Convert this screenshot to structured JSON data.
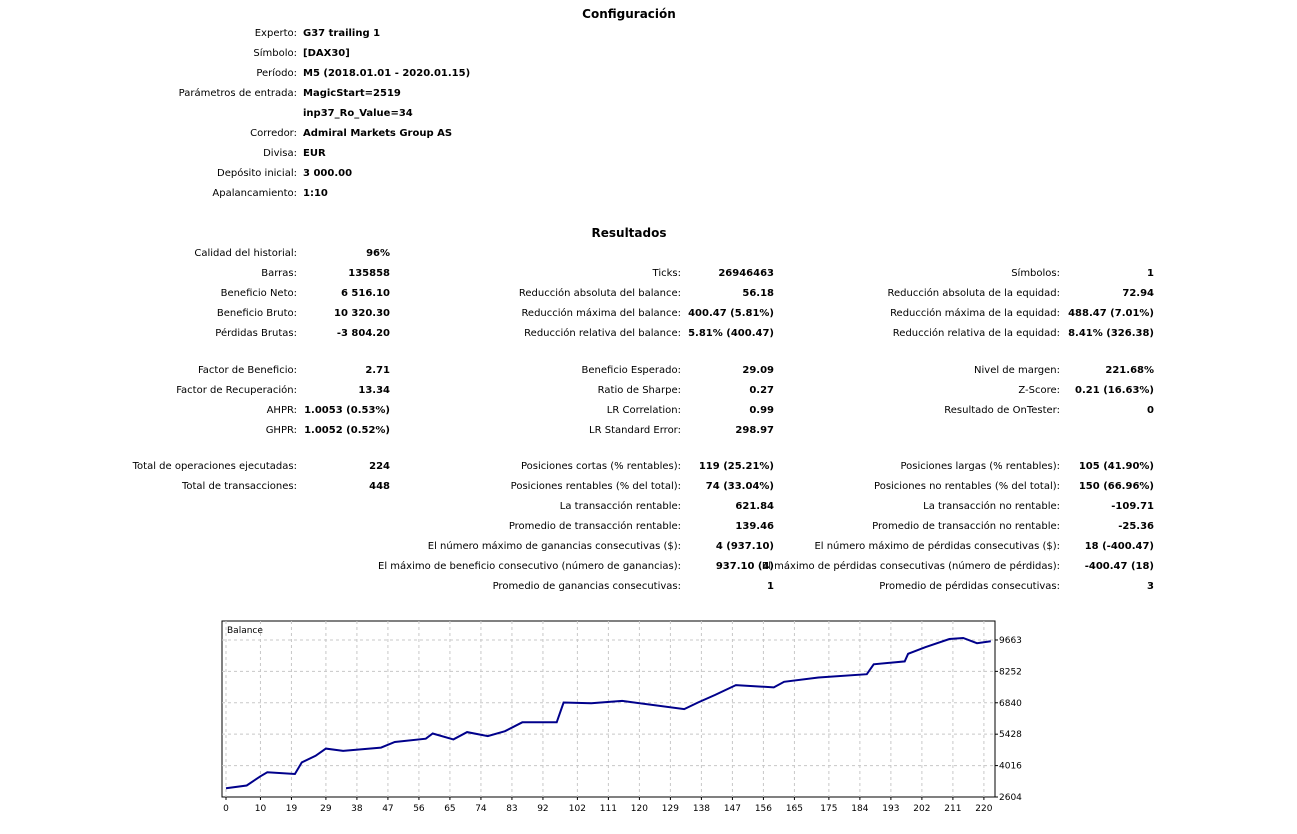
{
  "config": {
    "title": "Configuración",
    "rows": [
      {
        "label": "Experto:",
        "value": "G37 trailing 1"
      },
      {
        "label": "Símbolo:",
        "value": "[DAX30]"
      },
      {
        "label": "Período:",
        "value": "M5 (2018.01.01 - 2020.01.15)"
      },
      {
        "label": "Parámetros de entrada:",
        "value": "MagicStart=2519"
      },
      {
        "label": "",
        "value": "inp37_Ro_Value=34"
      },
      {
        "label": "Corredor:",
        "value": "Admiral Markets Group AS"
      },
      {
        "label": "Divisa:",
        "value": "EUR"
      },
      {
        "label": "Depósito inicial:",
        "value": "3 000.00"
      },
      {
        "label": "Apalancamiento:",
        "value": "1:10"
      }
    ]
  },
  "results": {
    "title": "Resultados",
    "groups": [
      [
        [
          [
            "Calidad del historial:",
            "96%"
          ],
          null,
          null
        ],
        [
          [
            "Barras:",
            "135858"
          ],
          [
            "Ticks:",
            "26946463"
          ],
          [
            "Símbolos:",
            "1"
          ]
        ],
        [
          [
            "Beneficio Neto:",
            "6 516.10"
          ],
          [
            "Reducción absoluta del balance:",
            "56.18"
          ],
          [
            "Reducción absoluta de la equidad:",
            "72.94"
          ]
        ],
        [
          [
            "Beneficio Bruto:",
            "10 320.30"
          ],
          [
            "Reducción máxima del balance:",
            "400.47 (5.81%)"
          ],
          [
            "Reducción máxima de la equidad:",
            "488.47 (7.01%)"
          ]
        ],
        [
          [
            "Pérdidas Brutas:",
            "-3 804.20"
          ],
          [
            "Reducción relativa del balance:",
            "5.81% (400.47)"
          ],
          [
            "Reducción relativa de la equidad:",
            "8.41% (326.38)"
          ]
        ]
      ],
      [
        [
          [
            "Factor de Beneficio:",
            "2.71"
          ],
          [
            "Beneficio Esperado:",
            "29.09"
          ],
          [
            "Nivel de margen:",
            "221.68%"
          ]
        ],
        [
          [
            "Factor de Recuperación:",
            "13.34"
          ],
          [
            "Ratio de Sharpe:",
            "0.27"
          ],
          [
            "Z-Score:",
            "0.21 (16.63%)"
          ]
        ],
        [
          [
            "AHPR:",
            "1.0053 (0.53%)"
          ],
          [
            "LR Correlation:",
            "0.99"
          ],
          [
            "Resultado de OnTester:",
            "0"
          ]
        ],
        [
          [
            "GHPR:",
            "1.0052 (0.52%)"
          ],
          [
            "LR Standard Error:",
            "298.97"
          ],
          null
        ]
      ],
      [
        [
          [
            "Total de operaciones ejecutadas:",
            "224"
          ],
          [
            "Posiciones cortas (% rentables):",
            "119 (25.21%)"
          ],
          [
            "Posiciones largas (% rentables):",
            "105 (41.90%)"
          ]
        ],
        [
          [
            "Total de transacciones:",
            "448"
          ],
          [
            "Posiciones rentables (% del total):",
            "74 (33.04%)"
          ],
          [
            "Posiciones no rentables (% del total):",
            "150 (66.96%)"
          ]
        ],
        [
          null,
          [
            "La transacción rentable:",
            "621.84"
          ],
          [
            "La transacción no rentable:",
            "-109.71"
          ]
        ],
        [
          null,
          [
            "Promedio de transacción rentable:",
            "139.46"
          ],
          [
            "Promedio de transacción no rentable:",
            "-25.36"
          ]
        ],
        [
          null,
          [
            "El número máximo de ganancias consecutivas ($):",
            "4 (937.10)"
          ],
          [
            "El número máximo de pérdidas consecutivas ($):",
            "18 (-400.47)"
          ]
        ],
        [
          null,
          [
            "El máximo de beneficio consecutivo (número de ganancias):",
            "937.10 (4)"
          ],
          [
            "El máximo de pérdidas consecutivas (número de pérdidas):",
            "-400.47 (18)"
          ]
        ],
        [
          null,
          [
            "Promedio de ganancias consecutivas:",
            "1"
          ],
          [
            "Promedio de pérdidas consecutivas:",
            "3"
          ]
        ]
      ]
    ]
  },
  "chart_data": {
    "type": "line",
    "title": "Balance",
    "xlabel": "",
    "ylabel": "",
    "x_ticks": [
      0,
      10,
      19,
      29,
      38,
      47,
      56,
      65,
      74,
      83,
      92,
      102,
      111,
      120,
      129,
      138,
      147,
      156,
      165,
      175,
      184,
      193,
      202,
      211,
      220
    ],
    "y_ticks": [
      2604,
      4016,
      5428,
      6840,
      8252,
      9663
    ],
    "xlim": [
      0,
      224
    ],
    "ylim": [
      2604,
      10500
    ],
    "grid": true,
    "line_color": "#00008b",
    "series": [
      {
        "name": "Balance",
        "x": [
          0,
          6,
          10,
          12,
          20,
          22,
          26,
          29,
          34,
          45,
          49,
          58,
          60,
          66,
          70,
          76,
          81,
          86,
          96,
          98,
          106,
          115,
          133,
          137,
          142,
          148,
          159,
          162,
          172,
          186,
          188,
          197,
          198,
          203,
          210,
          214,
          218,
          222
        ],
        "y": [
          3000,
          3120,
          3536,
          3714,
          3640,
          4158,
          4454,
          4780,
          4676,
          4824,
          5076,
          5224,
          5460,
          5194,
          5520,
          5342,
          5564,
          5964,
          5964,
          6852,
          6822,
          6926,
          6556,
          6852,
          7192,
          7636,
          7532,
          7784,
          7976,
          8124,
          8568,
          8702,
          9042,
          9338,
          9708,
          9752,
          9516,
          9604
        ]
      }
    ]
  }
}
